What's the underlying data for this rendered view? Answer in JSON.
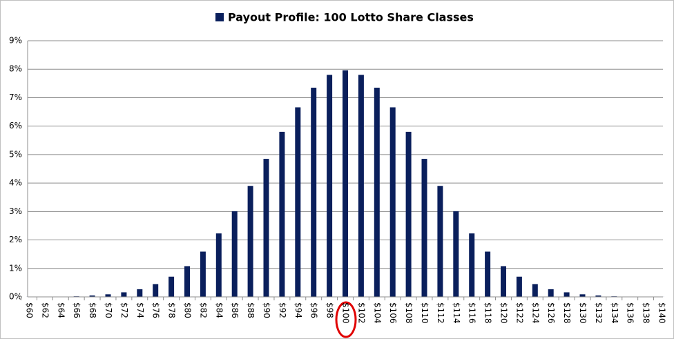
{
  "chart_data": {
    "type": "bar",
    "categories": [
      "$60",
      "$62",
      "$64",
      "$66",
      "$68",
      "$70",
      "$72",
      "$74",
      "$76",
      "$78",
      "$80",
      "$82",
      "$84",
      "$86",
      "$88",
      "$90",
      "$92",
      "$94",
      "$96",
      "$98",
      "$100",
      "$102",
      "$104",
      "$106",
      "$108",
      "$110",
      "$112",
      "$114",
      "$116",
      "$118",
      "$120",
      "$122",
      "$124",
      "$126",
      "$128",
      "$130",
      "$132",
      "$134",
      "$136",
      "$138",
      "$140"
    ],
    "series": [
      {
        "name": "Payout Profile: 100 Lotto Share Classes",
        "color": "#0a1f5c",
        "values": [
          0.002,
          0.005,
          0.01,
          0.02,
          0.05,
          0.09,
          0.16,
          0.27,
          0.45,
          0.71,
          1.08,
          1.59,
          2.23,
          3.01,
          3.9,
          4.85,
          5.8,
          6.66,
          7.35,
          7.8,
          7.96,
          7.8,
          7.35,
          6.66,
          5.8,
          4.85,
          3.9,
          3.01,
          2.23,
          1.59,
          1.08,
          0.71,
          0.45,
          0.27,
          0.16,
          0.09,
          0.05,
          0.02,
          0.01,
          0.005,
          0.002
        ]
      }
    ],
    "ylim": [
      0,
      9
    ],
    "yticks": [
      {
        "value": 0,
        "label": "0%"
      },
      {
        "value": 1,
        "label": "1%"
      },
      {
        "value": 2,
        "label": "2%"
      },
      {
        "value": 3,
        "label": "3%"
      },
      {
        "value": 4,
        "label": "4%"
      },
      {
        "value": 5,
        "label": "5%"
      },
      {
        "value": 6,
        "label": "6%"
      },
      {
        "value": 7,
        "label": "7%"
      },
      {
        "value": 8,
        "label": "8%"
      },
      {
        "value": 9,
        "label": "9%"
      }
    ],
    "grid": true,
    "legend": "top"
  }
}
